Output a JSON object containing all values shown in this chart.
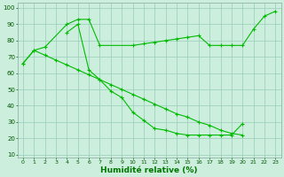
{
  "line1_x": [
    0,
    1,
    2,
    4,
    5,
    6,
    7,
    10,
    11,
    12,
    13,
    14,
    15,
    16,
    17,
    18,
    19,
    20,
    21,
    22,
    23
  ],
  "line1_y": [
    66,
    74,
    76,
    90,
    93,
    93,
    77,
    77,
    78,
    79,
    80,
    81,
    82,
    83,
    77,
    77,
    77,
    77,
    87,
    95,
    98
  ],
  "line2_x": [
    4,
    5,
    6,
    7,
    8,
    9,
    10,
    11,
    12,
    13,
    14,
    15,
    16,
    17,
    18,
    19,
    20
  ],
  "line2_y": [
    85,
    90,
    62,
    56,
    49,
    45,
    36,
    31,
    26,
    25,
    23,
    22,
    22,
    22,
    22,
    22,
    29
  ],
  "line3_x": [
    0,
    1,
    2,
    3,
    4,
    5,
    6,
    7,
    8,
    9,
    10,
    11,
    12,
    13,
    14,
    15,
    16,
    17,
    18,
    19,
    20
  ],
  "line3_y": [
    66,
    74,
    71,
    68,
    65,
    62,
    59,
    56,
    53,
    50,
    47,
    44,
    41,
    38,
    35,
    33,
    30,
    28,
    25,
    23,
    22
  ],
  "line_color": "#00bb00",
  "bg_color": "#cceedd",
  "grid_color": "#99ccbb",
  "xlabel": "Humidité relative (%)",
  "xlabel_color": "#007700",
  "xlabel_fontsize": 6.5,
  "yticks": [
    10,
    20,
    30,
    40,
    50,
    60,
    70,
    80,
    90,
    100
  ],
  "xtick_labels": [
    "0",
    "1",
    "2",
    "3",
    "4",
    "5",
    "6",
    "7",
    "8",
    "9",
    "10",
    "11",
    "12",
    "13",
    "14",
    "15",
    "16",
    "17",
    "18",
    "19",
    "20",
    "21",
    "22",
    "23"
  ],
  "xticks": [
    0,
    1,
    2,
    3,
    4,
    5,
    6,
    7,
    8,
    9,
    10,
    11,
    12,
    13,
    14,
    15,
    16,
    17,
    18,
    19,
    20,
    21,
    22,
    23
  ],
  "xlim": [
    -0.5,
    23.5
  ],
  "ylim": [
    8,
    103
  ]
}
